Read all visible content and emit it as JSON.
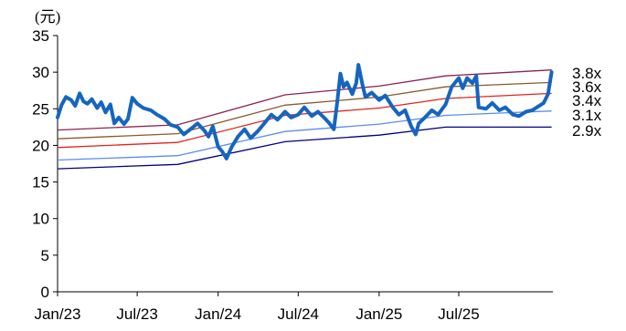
{
  "chart_data": {
    "type": "line",
    "title": "",
    "ylabel": "(元)",
    "xlabel": "",
    "ylim": [
      0,
      35
    ],
    "yticks": [
      0,
      5,
      10,
      15,
      20,
      25,
      30,
      35
    ],
    "x_range": [
      "2023-01-01",
      "2026-01-31"
    ],
    "xticks": [
      {
        "label": "Jan/23",
        "date": "2023-01-01"
      },
      {
        "label": "Jul/23",
        "date": "2023-07-01"
      },
      {
        "label": "Jan/24",
        "date": "2024-01-01"
      },
      {
        "label": "Jul/24",
        "date": "2024-07-01"
      },
      {
        "label": "Jan/25",
        "date": "2025-01-01"
      },
      {
        "label": "Jul/25",
        "date": "2025-07-01"
      }
    ],
    "grid": false,
    "legend": "labels at right end of each band line",
    "price": {
      "color": "#1565C0",
      "points": [
        [
          "2023-01-01",
          23.8
        ],
        [
          "2023-01-10",
          25.5
        ],
        [
          "2023-01-20",
          26.6
        ],
        [
          "2023-02-01",
          26.2
        ],
        [
          "2023-02-10",
          25.4
        ],
        [
          "2023-02-20",
          27.1
        ],
        [
          "2023-03-01",
          26.0
        ],
        [
          "2023-03-10",
          25.7
        ],
        [
          "2023-03-20",
          26.3
        ],
        [
          "2023-04-01",
          25.1
        ],
        [
          "2023-04-10",
          25.9
        ],
        [
          "2023-04-20",
          24.5
        ],
        [
          "2023-05-01",
          25.6
        ],
        [
          "2023-05-10",
          23.0
        ],
        [
          "2023-05-20",
          23.8
        ],
        [
          "2023-06-01",
          22.9
        ],
        [
          "2023-06-10",
          23.6
        ],
        [
          "2023-06-20",
          26.5
        ],
        [
          "2023-07-01",
          25.7
        ],
        [
          "2023-07-15",
          25.1
        ],
        [
          "2023-08-01",
          24.8
        ],
        [
          "2023-08-15",
          24.2
        ],
        [
          "2023-09-01",
          23.6
        ],
        [
          "2023-09-15",
          22.8
        ],
        [
          "2023-10-01",
          22.5
        ],
        [
          "2023-10-15",
          21.5
        ],
        [
          "2023-11-01",
          22.3
        ],
        [
          "2023-11-15",
          23.0
        ],
        [
          "2023-12-01",
          22.0
        ],
        [
          "2023-12-10",
          21.2
        ],
        [
          "2023-12-20",
          22.6
        ],
        [
          "2024-01-01",
          19.8
        ],
        [
          "2024-01-10",
          19.2
        ],
        [
          "2024-01-20",
          18.2
        ],
        [
          "2024-02-01",
          19.8
        ],
        [
          "2024-02-15",
          21.2
        ],
        [
          "2024-03-01",
          22.2
        ],
        [
          "2024-03-15",
          21.0
        ],
        [
          "2024-04-01",
          22.0
        ],
        [
          "2024-04-15",
          23.0
        ],
        [
          "2024-05-01",
          24.2
        ],
        [
          "2024-05-15",
          23.5
        ],
        [
          "2024-06-01",
          24.6
        ],
        [
          "2024-06-15",
          23.8
        ],
        [
          "2024-07-01",
          24.2
        ],
        [
          "2024-07-15",
          25.2
        ],
        [
          "2024-08-01",
          24.0
        ],
        [
          "2024-08-15",
          24.6
        ],
        [
          "2024-09-01",
          23.6
        ],
        [
          "2024-09-10",
          23.0
        ],
        [
          "2024-09-20",
          22.2
        ],
        [
          "2024-09-28",
          26.0
        ],
        [
          "2024-10-05",
          29.8
        ],
        [
          "2024-10-12",
          28.0
        ],
        [
          "2024-10-20",
          28.6
        ],
        [
          "2024-11-01",
          27.0
        ],
        [
          "2024-11-10",
          28.5
        ],
        [
          "2024-11-15",
          31.0
        ],
        [
          "2024-11-25",
          28.0
        ],
        [
          "2024-12-01",
          26.6
        ],
        [
          "2024-12-15",
          27.2
        ],
        [
          "2025-01-01",
          26.2
        ],
        [
          "2025-01-15",
          26.8
        ],
        [
          "2025-02-01",
          25.2
        ],
        [
          "2025-02-15",
          24.2
        ],
        [
          "2025-03-01",
          24.8
        ],
        [
          "2025-03-15",
          22.6
        ],
        [
          "2025-03-25",
          21.5
        ],
        [
          "2025-04-01",
          23.0
        ],
        [
          "2025-04-15",
          23.8
        ],
        [
          "2025-05-01",
          24.8
        ],
        [
          "2025-05-15",
          24.2
        ],
        [
          "2025-06-01",
          25.6
        ],
        [
          "2025-06-15",
          28.0
        ],
        [
          "2025-07-01",
          29.2
        ],
        [
          "2025-07-10",
          27.8
        ],
        [
          "2025-07-20",
          29.2
        ],
        [
          "2025-08-01",
          28.5
        ],
        [
          "2025-08-10",
          29.5
        ],
        [
          "2025-08-15",
          25.2
        ],
        [
          "2025-09-01",
          25.0
        ],
        [
          "2025-09-15",
          25.8
        ],
        [
          "2025-10-01",
          24.8
        ],
        [
          "2025-10-15",
          25.2
        ],
        [
          "2025-11-01",
          24.2
        ],
        [
          "2025-11-15",
          24.0
        ],
        [
          "2025-12-01",
          24.6
        ],
        [
          "2025-12-15",
          24.8
        ],
        [
          "2026-01-10",
          25.8
        ],
        [
          "2026-01-20",
          27.0
        ],
        [
          "2026-01-28",
          30.0
        ]
      ]
    },
    "bands": [
      {
        "label": "3.8x",
        "color": "#8B2252",
        "points": [
          [
            "2023-01-01",
            22.1
          ],
          [
            "2023-10-01",
            22.8
          ],
          [
            "2024-06-01",
            26.9
          ],
          [
            "2025-01-01",
            28.1
          ],
          [
            "2025-06-01",
            29.5
          ],
          [
            "2026-01-28",
            30.3
          ]
        ]
      },
      {
        "label": "3.6x",
        "color": "#8B5A2B",
        "points": [
          [
            "2023-01-01",
            20.9
          ],
          [
            "2023-10-01",
            21.6
          ],
          [
            "2024-06-01",
            25.5
          ],
          [
            "2025-01-01",
            26.6
          ],
          [
            "2025-06-01",
            28.0
          ],
          [
            "2026-01-28",
            28.6
          ]
        ]
      },
      {
        "label": "3.4x",
        "color": "#E0251B",
        "points": [
          [
            "2023-01-01",
            19.7
          ],
          [
            "2023-10-01",
            20.4
          ],
          [
            "2024-06-01",
            24.1
          ],
          [
            "2025-01-01",
            25.1
          ],
          [
            "2025-06-01",
            26.4
          ],
          [
            "2026-01-28",
            27.1
          ]
        ]
      },
      {
        "label": "3.1x",
        "color": "#5B8DEF",
        "points": [
          [
            "2023-01-01",
            18.0
          ],
          [
            "2023-10-01",
            18.6
          ],
          [
            "2024-06-01",
            21.9
          ],
          [
            "2025-01-01",
            22.9
          ],
          [
            "2025-06-01",
            24.1
          ],
          [
            "2026-01-28",
            24.7
          ]
        ]
      },
      {
        "label": "2.9x",
        "color": "#000080",
        "points": [
          [
            "2023-01-01",
            16.8
          ],
          [
            "2023-10-01",
            17.4
          ],
          [
            "2024-06-01",
            20.5
          ],
          [
            "2025-01-01",
            21.4
          ],
          [
            "2025-06-01",
            22.5
          ],
          [
            "2026-01-28",
            22.5
          ]
        ]
      }
    ]
  }
}
